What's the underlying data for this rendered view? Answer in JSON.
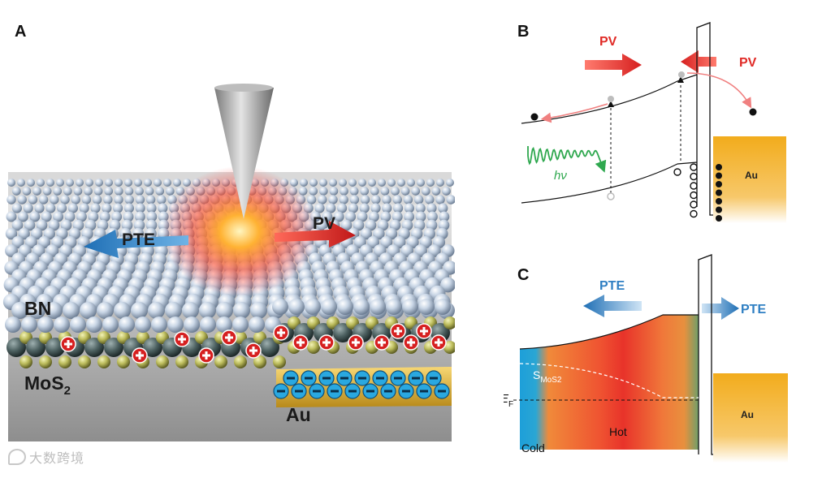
{
  "panels": {
    "a": {
      "label": "A",
      "layers": {
        "bn": "BN",
        "mos2": "MoS",
        "mos2_sub": "2",
        "au": "Au"
      },
      "arrows": {
        "pte": "PTE",
        "pv": "PV"
      }
    },
    "b": {
      "label": "B",
      "pv_left": "PV",
      "pv_right": "PV",
      "photon": "hν",
      "metal": "Au"
    },
    "c": {
      "label": "C",
      "pte_left": "PTE",
      "pte_right": "PTE",
      "seebeck_main": "S",
      "seebeck_sub": "MoS2",
      "fermi_main": "E",
      "fermi_sub": "F",
      "cold": "Cold",
      "hot": "Hot",
      "metal": "Au"
    }
  },
  "watermark": "大数跨境",
  "colors": {
    "pv_red": "#e02a26",
    "pte_blue": "#2f7fc3",
    "au_gold": "#f2ac1c",
    "photon_green": "#2fa84f",
    "bn_sphere": "#c9d6e6",
    "mos2_sphere": "#c4c46a"
  }
}
